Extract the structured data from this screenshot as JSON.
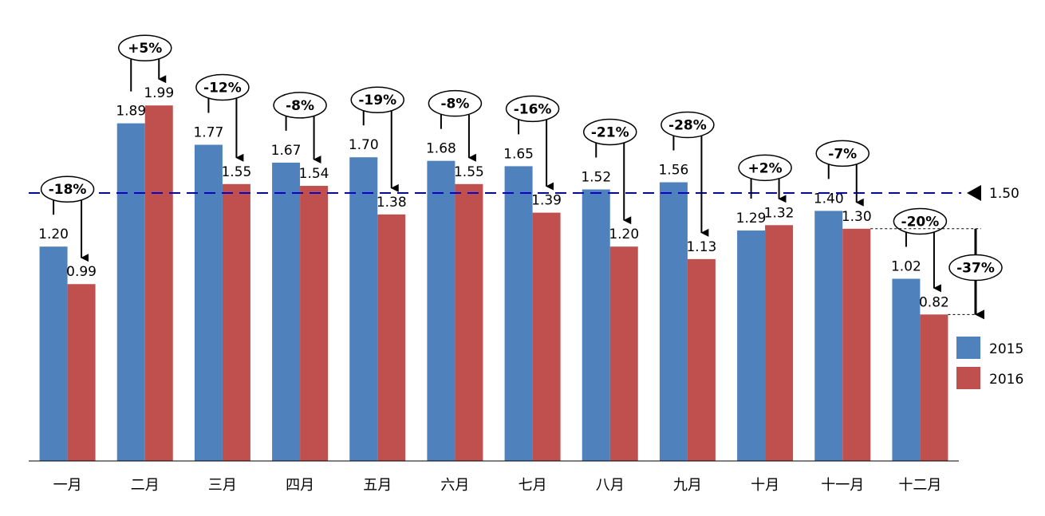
{
  "chart_data": {
    "type": "bar",
    "categories": [
      "一月",
      "二月",
      "三月",
      "四月",
      "五月",
      "六月",
      "七月",
      "八月",
      "九月",
      "十月",
      "十一月",
      "十二月"
    ],
    "series": [
      {
        "name": "2015",
        "color": "#4F81BD",
        "values": [
          1.2,
          1.89,
          1.77,
          1.67,
          1.7,
          1.68,
          1.65,
          1.52,
          1.56,
          1.29,
          1.4,
          1.02
        ]
      },
      {
        "name": "2016",
        "color": "#C0504D",
        "values": [
          0.99,
          1.99,
          1.55,
          1.54,
          1.38,
          1.55,
          1.39,
          1.2,
          1.13,
          1.32,
          1.3,
          0.82
        ]
      }
    ],
    "change_labels": [
      "-18%",
      "+5%",
      "-12%",
      "-8%",
      "-19%",
      "-8%",
      "-16%",
      "-21%",
      "-28%",
      "+2%",
      "-7%",
      "-20%"
    ],
    "reference_line": {
      "value": 1.5,
      "label": "1.50",
      "color": "#0000CC",
      "style": "dashed"
    },
    "extra_annotation": {
      "label": "-37%",
      "from": "十一月 2016 (1.30)",
      "to": "十二月 2016 (0.82)"
    },
    "ylim": [
      0,
      2.0
    ],
    "grid": false,
    "legend": "right"
  }
}
